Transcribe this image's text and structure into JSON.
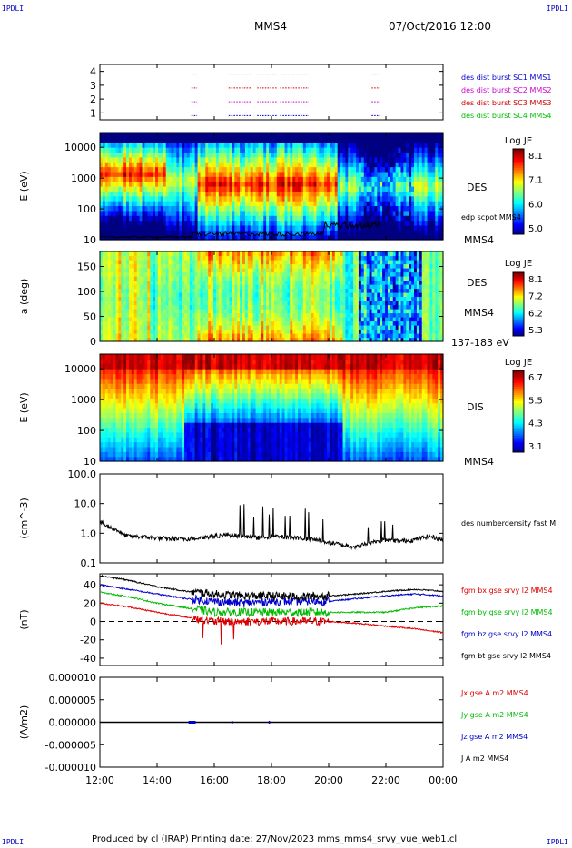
{
  "corner_labels": {
    "top_left": "IPDLI",
    "top_right": "IPDLI",
    "bottom_left": "IPDLI",
    "bottom_right": "IPDLI"
  },
  "header": {
    "spacecraft": "MMS4",
    "datetime": "07/Oct/2016 12:00"
  },
  "footer": {
    "text": "Produced by cl (IRAP)   Printing date: 27/Nov/2023   mms_mms4_srvy_vue_web1.cl"
  },
  "chart_data": [
    {
      "type": "bar",
      "panel": "burst",
      "yticks": [
        "1",
        "2",
        "3",
        "4"
      ],
      "legend": [
        {
          "label": "des dist burst SC1 MMS1",
          "color": "#0000cc",
          "level": 1
        },
        {
          "label": "des dist burst SC2 MMS2",
          "color": "#cc00cc",
          "level": 2
        },
        {
          "label": "des dist burst SC3 MMS3",
          "color": "#cc0000",
          "level": 3
        },
        {
          "label": "des dist burst SC4 MMS4",
          "color": "#00bb00",
          "level": 4
        }
      ],
      "intervals_hours": [
        [
          15.2,
          15.4
        ],
        [
          16.5,
          17.3
        ],
        [
          17.5,
          18.2
        ],
        [
          18.3,
          19.3
        ],
        [
          21.5,
          21.8
        ]
      ]
    },
    {
      "type": "heatmap",
      "panel": "des-energy",
      "ylabel": "E (eV)",
      "yticks": [
        "10",
        "100",
        "1000",
        "10000"
      ],
      "ylim": [
        10,
        30000
      ],
      "log_y": true,
      "right_labels": [
        "DES",
        "edp scpot MMS4",
        "MMS4"
      ],
      "colorbar": {
        "title": "Log JE",
        "ticks": [
          "8.1",
          "7.1",
          "6.0",
          "5.0"
        ],
        "range": [
          5.0,
          8.1
        ]
      }
    },
    {
      "type": "heatmap",
      "panel": "des-pitch",
      "ylabel": "a (deg)",
      "yticks": [
        "0",
        "50",
        "100",
        "150"
      ],
      "ylim": [
        0,
        180
      ],
      "right_labels": [
        "DES",
        "MMS4",
        "137-183 eV"
      ],
      "colorbar": {
        "title": "Log JE",
        "ticks": [
          "8.1",
          "7.2",
          "6.2",
          "5.3"
        ],
        "range": [
          5.3,
          8.1
        ]
      }
    },
    {
      "type": "heatmap",
      "panel": "dis-energy",
      "ylabel": "E (eV)",
      "yticks": [
        "10",
        "100",
        "1000",
        "10000"
      ],
      "ylim": [
        10,
        30000
      ],
      "log_y": true,
      "right_labels": [
        "DIS",
        "MMS4"
      ],
      "colorbar": {
        "title": "Log JE",
        "ticks": [
          "6.7",
          "5.5",
          "4.3",
          "3.1"
        ],
        "range": [
          3.1,
          6.7
        ]
      }
    },
    {
      "type": "line",
      "panel": "density",
      "ylabel": "(cm^-3)",
      "yticks": [
        "0.1",
        "1.0",
        "10.0",
        "100.0"
      ],
      "ylim": [
        0.1,
        100
      ],
      "log_y": true,
      "series": [
        {
          "name": "des numberdensity fast M",
          "color": "#000000",
          "x": [
            12.0,
            12.2,
            12.4,
            12.6,
            12.8,
            13.0,
            13.5,
            14.0,
            14.5,
            15.0,
            15.5,
            16.0,
            16.5,
            17.0,
            17.5,
            18.0,
            18.5,
            19.0,
            19.5,
            20.0,
            20.5,
            21.0,
            21.5,
            22.0,
            22.5,
            23.0,
            23.5,
            24.0
          ],
          "values": [
            2.5,
            1.8,
            1.5,
            1.3,
            0.9,
            0.8,
            0.75,
            0.7,
            0.65,
            0.65,
            0.7,
            0.8,
            0.9,
            0.8,
            0.7,
            0.8,
            0.75,
            0.7,
            0.6,
            0.5,
            0.4,
            0.35,
            0.5,
            0.6,
            0.55,
            0.6,
            0.8,
            0.6
          ]
        }
      ]
    },
    {
      "type": "line",
      "panel": "magnetic-field",
      "ylabel": "(nT)",
      "yticks": [
        "-40",
        "-20",
        "0",
        "20",
        "40"
      ],
      "ylim": [
        -48,
        52
      ],
      "zero_line": true,
      "series": [
        {
          "name": "fgm bx gse srvy l2 MMS4",
          "color": "#dd0000",
          "x": [
            12,
            13,
            14,
            15,
            16,
            17,
            18,
            19,
            20,
            21,
            22,
            23,
            24
          ],
          "values": [
            20,
            16,
            10,
            5,
            0,
            0,
            0,
            0,
            0,
            -2,
            -5,
            -8,
            -12
          ]
        },
        {
          "name": "fgm by gse srvy l2 MMS4",
          "color": "#00bb00",
          "x": [
            12,
            13,
            14,
            15,
            16,
            17,
            18,
            19,
            20,
            21,
            22,
            23,
            24
          ],
          "values": [
            32,
            27,
            20,
            15,
            10,
            10,
            10,
            10,
            10,
            10,
            10,
            15,
            17
          ]
        },
        {
          "name": "fgm bz gse srvy l2 MMS4",
          "color": "#0000cc",
          "x": [
            12,
            13,
            14,
            15,
            16,
            17,
            18,
            19,
            20,
            21,
            22,
            23,
            24
          ],
          "values": [
            40,
            35,
            30,
            25,
            22,
            20,
            22,
            22,
            22,
            25,
            28,
            30,
            28
          ]
        },
        {
          "name": "fgm bt gse srvy l2 MMS4",
          "color": "#000000",
          "x": [
            12,
            13,
            14,
            15,
            16,
            17,
            18,
            19,
            20,
            21,
            22,
            23,
            24
          ],
          "values": [
            50,
            45,
            38,
            33,
            30,
            28,
            28,
            27,
            28,
            30,
            33,
            35,
            33
          ]
        }
      ]
    },
    {
      "type": "line",
      "panel": "current-density",
      "ylabel": "(A/m2)",
      "yticks": [
        "-0.000010",
        "-0.000005",
        "0.000000",
        "0.000005",
        "0.000010"
      ],
      "ylim": [
        -1e-05,
        1e-05
      ],
      "series": [
        {
          "name": "Jx gse A m2 MMS4",
          "color": "#dd0000",
          "x": [
            12,
            24
          ],
          "values": [
            0,
            0
          ]
        },
        {
          "name": "Jy gse A m2 MMS4",
          "color": "#00bb00",
          "x": [
            12,
            24
          ],
          "values": [
            0,
            0
          ]
        },
        {
          "name": "Jz gse A m2 MMS4",
          "color": "#0000cc",
          "x": [
            12,
            24
          ],
          "values": [
            0,
            0
          ]
        },
        {
          "name": "J A m2 MMS4",
          "color": "#000000",
          "x": [
            12,
            24
          ],
          "values": [
            0,
            0
          ]
        }
      ]
    }
  ],
  "time_axis": {
    "ticks": [
      "12:00",
      "14:00",
      "16:00",
      "18:00",
      "20:00",
      "22:00",
      "00:00"
    ],
    "range_hours": [
      12,
      24
    ]
  }
}
